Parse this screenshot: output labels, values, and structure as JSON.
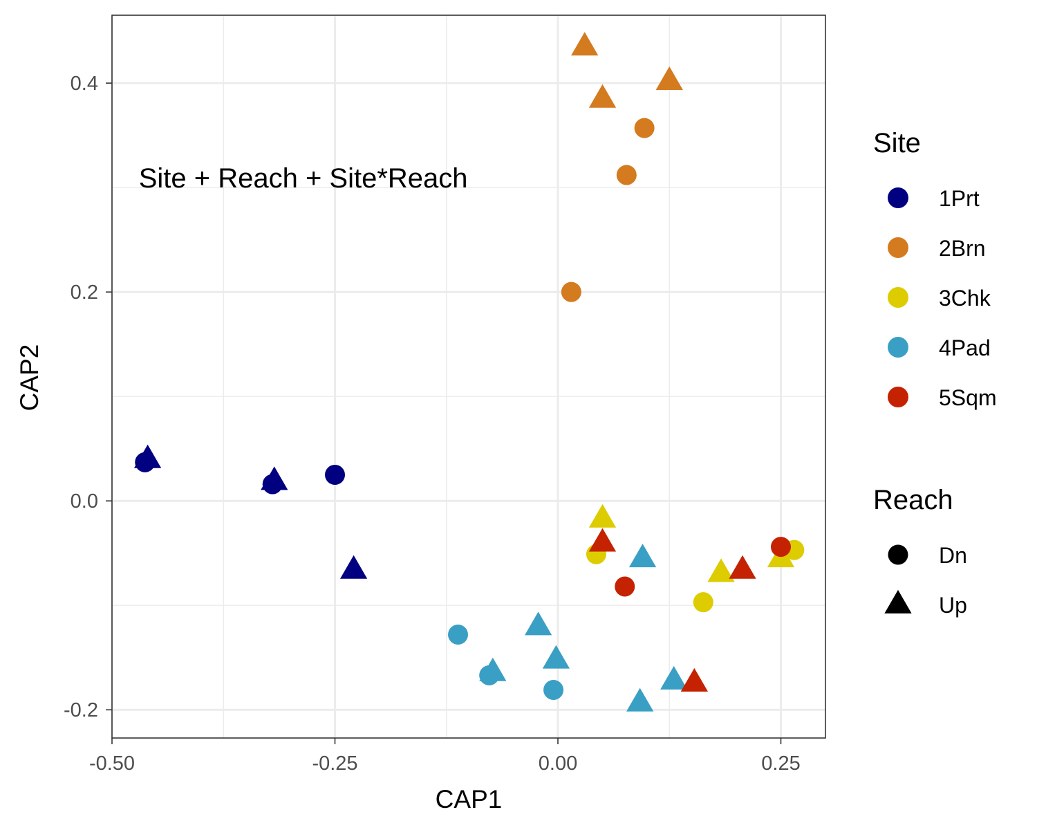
{
  "chart_data": {
    "type": "scatter",
    "xlabel": "CAP1",
    "ylabel": "CAP2",
    "xlim": [
      -0.5,
      0.3
    ],
    "ylim": [
      -0.227,
      0.465
    ],
    "x_ticks": [
      -0.5,
      -0.25,
      0.0,
      0.25
    ],
    "x_tick_labels": [
      "-0.50",
      "-0.25",
      "0.00",
      "0.25"
    ],
    "y_ticks": [
      -0.2,
      0.0,
      0.2,
      0.4
    ],
    "y_tick_labels": [
      "-0.2",
      "0.0",
      "0.2",
      "0.4"
    ],
    "grid": true,
    "annotation": {
      "text": "Site + Reach + Site*Reach",
      "x": -0.47,
      "y": 0.3
    },
    "legend": {
      "position": "right",
      "color_title": "Site",
      "shape_title": "Reach",
      "sites": [
        {
          "label": "1Prt",
          "color": "#000080"
        },
        {
          "label": "2Brn",
          "color": "#D47A1F"
        },
        {
          "label": "3Chk",
          "color": "#DDCC00"
        },
        {
          "label": "4Pad",
          "color": "#3A9FC4"
        },
        {
          "label": "5Sqm",
          "color": "#C42200"
        }
      ],
      "reaches": [
        {
          "label": "Dn",
          "shape": "circle"
        },
        {
          "label": "Up",
          "shape": "triangle"
        }
      ]
    },
    "points": [
      {
        "site": "1Prt",
        "reach": "Dn",
        "x": -0.463,
        "y": 0.037
      },
      {
        "site": "1Prt",
        "reach": "Up",
        "x": -0.46,
        "y": 0.04
      },
      {
        "site": "1Prt",
        "reach": "Dn",
        "x": -0.32,
        "y": 0.016
      },
      {
        "site": "1Prt",
        "reach": "Up",
        "x": -0.318,
        "y": 0.019
      },
      {
        "site": "1Prt",
        "reach": "Dn",
        "x": -0.25,
        "y": 0.025
      },
      {
        "site": "1Prt",
        "reach": "Up",
        "x": -0.229,
        "y": -0.066
      },
      {
        "site": "2Brn",
        "reach": "Up",
        "x": 0.03,
        "y": 0.435
      },
      {
        "site": "2Brn",
        "reach": "Up",
        "x": 0.125,
        "y": 0.402
      },
      {
        "site": "2Brn",
        "reach": "Up",
        "x": 0.05,
        "y": 0.385
      },
      {
        "site": "2Brn",
        "reach": "Dn",
        "x": 0.097,
        "y": 0.357
      },
      {
        "site": "2Brn",
        "reach": "Dn",
        "x": 0.077,
        "y": 0.312
      },
      {
        "site": "2Brn",
        "reach": "Dn",
        "x": 0.015,
        "y": 0.2
      },
      {
        "site": "3Chk",
        "reach": "Up",
        "x": 0.05,
        "y": -0.017
      },
      {
        "site": "3Chk",
        "reach": "Dn",
        "x": 0.043,
        "y": -0.051
      },
      {
        "site": "3Chk",
        "reach": "Up",
        "x": 0.183,
        "y": -0.069
      },
      {
        "site": "3Chk",
        "reach": "Up",
        "x": 0.25,
        "y": -0.055
      },
      {
        "site": "3Chk",
        "reach": "Dn",
        "x": 0.265,
        "y": -0.047
      },
      {
        "site": "3Chk",
        "reach": "Dn",
        "x": 0.163,
        "y": -0.097
      },
      {
        "site": "4Pad",
        "reach": "Up",
        "x": 0.095,
        "y": -0.055
      },
      {
        "site": "4Pad",
        "reach": "Dn",
        "x": -0.112,
        "y": -0.128
      },
      {
        "site": "4Pad",
        "reach": "Up",
        "x": -0.022,
        "y": -0.12
      },
      {
        "site": "4Pad",
        "reach": "Up",
        "x": -0.002,
        "y": -0.152
      },
      {
        "site": "4Pad",
        "reach": "Up",
        "x": -0.073,
        "y": -0.164
      },
      {
        "site": "4Pad",
        "reach": "Dn",
        "x": -0.077,
        "y": -0.167
      },
      {
        "site": "4Pad",
        "reach": "Dn",
        "x": -0.005,
        "y": -0.181
      },
      {
        "site": "4Pad",
        "reach": "Up",
        "x": 0.13,
        "y": -0.172
      },
      {
        "site": "4Pad",
        "reach": "Up",
        "x": 0.092,
        "y": -0.193
      },
      {
        "site": "5Sqm",
        "reach": "Up",
        "x": 0.05,
        "y": -0.04
      },
      {
        "site": "5Sqm",
        "reach": "Dn",
        "x": 0.075,
        "y": -0.082
      },
      {
        "site": "5Sqm",
        "reach": "Up",
        "x": 0.207,
        "y": -0.066
      },
      {
        "site": "5Sqm",
        "reach": "Dn",
        "x": 0.25,
        "y": -0.044
      },
      {
        "site": "5Sqm",
        "reach": "Up",
        "x": 0.153,
        "y": -0.174
      }
    ]
  }
}
